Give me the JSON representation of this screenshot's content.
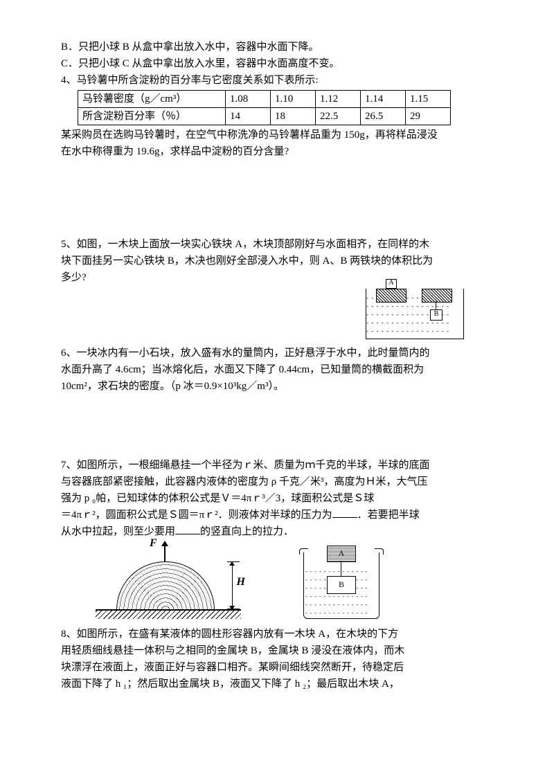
{
  "optB": "B．只把小球 B 从盒中拿出放入水中，容器中水面下降。",
  "optC": "C．只把小球 C 从盒中拿出放入水里，容器中水面高度不变。",
  "q4_intro": "4、马铃薯中所含淀粉的百分率与它密度关系如下表所示:",
  "table": {
    "row1_label": "马铃薯密度（g／cm³）",
    "row2_label": "所含淀粉百分率（％）",
    "r1": [
      "1.08",
      "1.10",
      "1.12",
      "1.14",
      "1.15"
    ],
    "r2": [
      "14",
      "18",
      "22.5",
      "26.5",
      "29"
    ]
  },
  "q4_body1": "某采购员在选购马铃薯时，在空气中称洗净的马铃薯样品重为 150g，再将样品浸没",
  "q4_body2": "在水中称得重为 19.6g，求样品中淀粉的百分含量?",
  "q5_l1": "5、如图，一木块上面放一块实心铁块 A，木块顶部刚好与水面相齐，在同样的木",
  "q5_l2": "块下面挂另一实心铁块 B，木决也刚好全部浸入水中，则 A、B 两铁块的体积比为",
  "q5_l3": "多少?",
  "fig5": {
    "A": "A",
    "B": "B",
    "waves": "- - - - - - - - - - - - - - - - -"
  },
  "q6_l1": "6、一块冰内有一小石块，放入盛有水的量筒内，正好悬浮于水中，此时量筒内的",
  "q6_l2": "水面升高了 4.6cm；当冰熔化后，水面又下降了 0.44cm，已知量筒的横截面积为",
  "q6_l3": "10cm²，求石块的密度。（p 冰＝0.9×10³kg／m³）。",
  "q7_l1": "7、如图所示，一根细绳悬挂一个半径为ｒ米、质量为ｍ千克的半球，半球的底面",
  "q7_l2": "与容器底部紧密接触，此容器内液体的密度为 ρ 千克／米³，高度为Ｈ米，大气压",
  "q7_l3": "强为 p ₀帕，已知球体的体积公式是Ｖ＝4πｒ³／3，球面积公式是Ｓ球",
  "q7_l4_a": "＝4πｒ²，圆面积公式是Ｓ圆＝πｒ²．则液体对半球的压力为",
  "q7_l4_b": "．若要把半球",
  "q7_l5_a": "从水中拉起，则至少要用",
  "q7_l5_b": "的竖直向上的拉力．",
  "fig7": {
    "F": "F",
    "H": "H",
    "A": "A",
    "B": "B",
    "waves": "- - - - - - - - - - - - - -"
  },
  "q8_l1": "8、如图所示，在盛有某液体的圆柱形容器内放有一木块 A，在木块的下方",
  "q8_l2": "用轻质细线悬挂一体积与之相同的金属块 B，金属块 B 浸没在液体内，而木",
  "q8_l3": "块漂浮在液面上，液面正好与容器口相齐。某瞬间细线突然断开，待稳定后",
  "q8_l4": "液面下降了 h ₁；然后取出金属块 B，液面又下降了 h ₂；最后取出木块 A，"
}
